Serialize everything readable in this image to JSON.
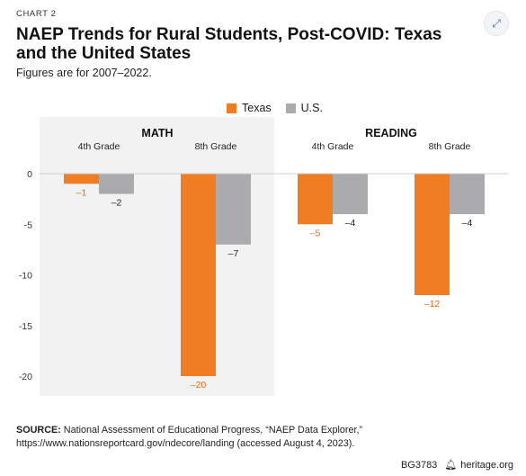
{
  "header": {
    "chart_tag": "CHART 2",
    "title": "NAEP Trends for Rural Students, Post-COVID: Texas and the United States",
    "subtitle": "Figures are for 2007–2022."
  },
  "icons": {
    "corner": "expand-icon"
  },
  "colors": {
    "texas": "#ee7d23",
    "us": "#ababad",
    "math_panel": "#f2f2f2",
    "label_texas": "#e06a10"
  },
  "legend": {
    "texas": "Texas",
    "us": "U.S."
  },
  "source": {
    "prefix": "SOURCE:",
    "text": "National Assessment of Educational Progress, “NAEP Data Explorer,” https://www.nationsreportcard.gov/ndecore/landing (accessed August 4, 2023)."
  },
  "footer": {
    "code": "BG3783",
    "site": "heritage.org"
  },
  "chart_data": {
    "type": "bar",
    "groups": [
      {
        "subject": "MATH",
        "categories": [
          "4th Grade",
          "8th Grade"
        ]
      },
      {
        "subject": "READING",
        "categories": [
          "4th Grade",
          "8th Grade"
        ]
      }
    ],
    "series": [
      {
        "name": "Texas",
        "values": [
          -1,
          -20,
          -5,
          -12
        ],
        "labels": [
          "–1",
          "–20",
          "–5",
          "–12"
        ]
      },
      {
        "name": "U.S.",
        "values": [
          -2,
          -7,
          -4,
          -4
        ],
        "labels": [
          "–2",
          "–7",
          "–4",
          "–4"
        ]
      }
    ],
    "yticks": [
      0,
      -5,
      -10,
      -15,
      -20
    ],
    "ytick_labels": [
      "0",
      "-5",
      "-10",
      "-15",
      "-20"
    ],
    "ylim": [
      -21.5,
      0
    ],
    "legend_position": "top",
    "grid": false
  }
}
